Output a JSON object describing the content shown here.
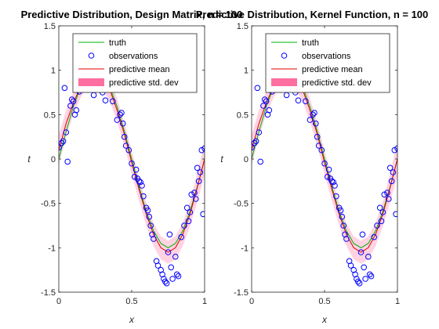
{
  "chart_data": [
    {
      "type": "line",
      "title": "Predictive Distribution, Design Matrix, n = 100",
      "xlabel": "x",
      "ylabel": "t",
      "xlim": [
        0,
        1
      ],
      "ylim": [
        -1.5,
        1.5
      ],
      "xticks": [
        0,
        0.5,
        1
      ],
      "xtick_labels": [
        "0",
        "0.5",
        "1"
      ],
      "yticks": [
        -1.5,
        -1,
        -0.5,
        0,
        0.5,
        1,
        1.5
      ],
      "ytick_labels": [
        "-1.5",
        "-1",
        "-0.5",
        "0",
        "0.5",
        "1",
        "1.5"
      ],
      "legend": [
        "truth",
        "observations",
        "predictive mean",
        "predictive std. dev"
      ],
      "legend_position": "top-right",
      "colors": {
        "truth": "#00b000",
        "observations": "#0000ff",
        "mean": "#e00000",
        "band": "#ff6ea0"
      },
      "x": [
        0.0,
        0.05,
        0.1,
        0.15,
        0.2,
        0.25,
        0.3,
        0.35,
        0.4,
        0.45,
        0.5,
        0.55,
        0.6,
        0.65,
        0.7,
        0.75,
        0.8,
        0.85,
        0.9,
        0.95,
        1.0
      ],
      "truth": [
        0.0,
        0.31,
        0.59,
        0.81,
        0.95,
        1.0,
        0.95,
        0.81,
        0.59,
        0.31,
        0.0,
        -0.31,
        -0.59,
        -0.81,
        -0.95,
        -1.0,
        -0.95,
        -0.81,
        -0.59,
        -0.31,
        0.0
      ],
      "mean": [
        0.1,
        0.4,
        0.63,
        0.82,
        0.95,
        0.98,
        0.92,
        0.78,
        0.55,
        0.28,
        -0.04,
        -0.34,
        -0.62,
        -0.85,
        -1.0,
        -1.05,
        -1.0,
        -0.85,
        -0.62,
        -0.32,
        0.0
      ],
      "std": [
        0.17,
        0.15,
        0.13,
        0.13,
        0.13,
        0.13,
        0.13,
        0.13,
        0.13,
        0.13,
        0.13,
        0.13,
        0.13,
        0.13,
        0.13,
        0.13,
        0.13,
        0.13,
        0.14,
        0.16,
        0.19
      ],
      "observations": {
        "x": [
          0.0,
          0.02,
          0.03,
          0.04,
          0.05,
          0.06,
          0.08,
          0.09,
          0.1,
          0.11,
          0.12,
          0.14,
          0.2,
          0.24,
          0.3,
          0.32,
          0.34,
          0.37,
          0.4,
          0.42,
          0.43,
          0.44,
          0.45,
          0.46,
          0.48,
          0.5,
          0.52,
          0.53,
          0.54,
          0.55,
          0.56,
          0.57,
          0.58,
          0.6,
          0.61,
          0.62,
          0.63,
          0.64,
          0.65,
          0.67,
          0.68,
          0.7,
          0.71,
          0.72,
          0.73,
          0.74,
          0.75,
          0.76,
          0.77,
          0.78,
          0.8,
          0.81,
          0.82,
          0.84,
          0.86,
          0.88,
          0.89,
          0.9,
          0.91,
          0.93,
          0.94,
          0.95,
          0.96,
          0.97,
          0.98,
          0.99,
          1.0
        ],
        "y": [
          0.13,
          0.18,
          0.2,
          0.8,
          0.3,
          -0.03,
          0.6,
          0.67,
          0.65,
          0.5,
          0.55,
          0.76,
          0.78,
          0.72,
          0.75,
          0.66,
          0.8,
          0.65,
          0.44,
          0.5,
          0.52,
          0.4,
          0.25,
          0.15,
          0.1,
          -0.05,
          -0.2,
          -0.12,
          -0.22,
          -0.25,
          -0.26,
          -0.3,
          -0.42,
          -0.55,
          -0.58,
          -0.65,
          -0.75,
          -0.85,
          -0.9,
          -1.15,
          -1.2,
          -1.25,
          -1.3,
          -1.35,
          -1.38,
          -1.4,
          -1.05,
          -0.85,
          -1.22,
          -1.35,
          -1.1,
          -1.3,
          -1.32,
          -0.88,
          -0.75,
          -0.55,
          -0.7,
          -0.6,
          -0.4,
          -0.38,
          -0.45,
          -0.1,
          -0.25,
          -0.15,
          0.1,
          -0.62,
          0.12
        ]
      }
    },
    {
      "type": "line",
      "title": "Predictive Distribution, Kernel Function, n = 100",
      "xlabel": "x",
      "ylabel": "t",
      "xlim": [
        0,
        1
      ],
      "ylim": [
        -1.5,
        1.5
      ],
      "xticks": [
        0,
        0.5,
        1
      ],
      "xtick_labels": [
        "0",
        "0.5",
        "1"
      ],
      "yticks": [
        -1.5,
        -1,
        -0.5,
        0,
        0.5,
        1,
        1.5
      ],
      "ytick_labels": [
        "-1.5",
        "-1",
        "-0.5",
        "0",
        "0.5",
        "1",
        "1.5"
      ],
      "legend": [
        "truth",
        "observations",
        "predictive mean",
        "predictive std. dev"
      ],
      "legend_position": "top-right",
      "colors": {
        "truth": "#00b000",
        "observations": "#0000ff",
        "mean": "#e00000",
        "band": "#ff6ea0"
      },
      "x": [
        0.0,
        0.05,
        0.1,
        0.15,
        0.2,
        0.25,
        0.3,
        0.35,
        0.4,
        0.45,
        0.5,
        0.55,
        0.6,
        0.65,
        0.7,
        0.75,
        0.8,
        0.85,
        0.9,
        0.95,
        1.0
      ],
      "truth": [
        0.0,
        0.31,
        0.59,
        0.81,
        0.95,
        1.0,
        0.95,
        0.81,
        0.59,
        0.31,
        0.0,
        -0.31,
        -0.59,
        -0.81,
        -0.95,
        -1.0,
        -0.95,
        -0.81,
        -0.59,
        -0.31,
        0.0
      ],
      "mean": [
        0.1,
        0.4,
        0.63,
        0.82,
        0.95,
        0.98,
        0.92,
        0.78,
        0.55,
        0.28,
        -0.04,
        -0.34,
        -0.62,
        -0.85,
        -1.0,
        -1.05,
        -1.0,
        -0.85,
        -0.62,
        -0.32,
        0.0
      ],
      "std": [
        0.17,
        0.15,
        0.13,
        0.13,
        0.13,
        0.13,
        0.13,
        0.13,
        0.13,
        0.13,
        0.13,
        0.13,
        0.13,
        0.13,
        0.13,
        0.13,
        0.13,
        0.13,
        0.14,
        0.16,
        0.19
      ],
      "observations": {
        "x": [
          0.0,
          0.02,
          0.03,
          0.04,
          0.05,
          0.06,
          0.08,
          0.09,
          0.1,
          0.11,
          0.12,
          0.14,
          0.2,
          0.24,
          0.3,
          0.32,
          0.34,
          0.37,
          0.4,
          0.42,
          0.43,
          0.44,
          0.45,
          0.46,
          0.48,
          0.5,
          0.52,
          0.53,
          0.54,
          0.55,
          0.56,
          0.57,
          0.58,
          0.6,
          0.61,
          0.62,
          0.63,
          0.64,
          0.65,
          0.67,
          0.68,
          0.7,
          0.71,
          0.72,
          0.73,
          0.74,
          0.75,
          0.76,
          0.77,
          0.78,
          0.8,
          0.81,
          0.82,
          0.84,
          0.86,
          0.88,
          0.89,
          0.9,
          0.91,
          0.93,
          0.94,
          0.95,
          0.96,
          0.97,
          0.98,
          0.99,
          1.0
        ],
        "y": [
          0.13,
          0.18,
          0.2,
          0.8,
          0.3,
          -0.03,
          0.6,
          0.67,
          0.65,
          0.5,
          0.55,
          0.76,
          0.78,
          0.72,
          0.75,
          0.66,
          0.8,
          0.65,
          0.44,
          0.5,
          0.52,
          0.4,
          0.25,
          0.15,
          0.1,
          -0.05,
          -0.2,
          -0.12,
          -0.22,
          -0.25,
          -0.26,
          -0.3,
          -0.42,
          -0.55,
          -0.58,
          -0.65,
          -0.75,
          -0.85,
          -0.9,
          -1.15,
          -1.2,
          -1.25,
          -1.3,
          -1.35,
          -1.38,
          -1.4,
          -1.05,
          -0.85,
          -1.22,
          -1.35,
          -1.1,
          -1.3,
          -1.32,
          -0.88,
          -0.75,
          -0.55,
          -0.7,
          -0.6,
          -0.4,
          -0.38,
          -0.45,
          -0.1,
          -0.25,
          -0.15,
          0.1,
          -0.62,
          0.12
        ]
      }
    }
  ]
}
